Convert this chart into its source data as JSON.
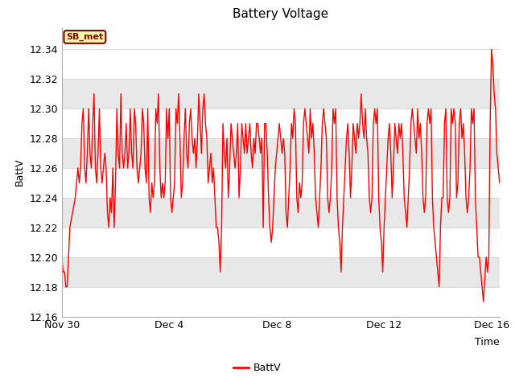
{
  "title": "Battery Voltage",
  "xlabel": "Time",
  "ylabel": "BattV",
  "ylim": [
    12.16,
    12.355
  ],
  "yticks": [
    12.16,
    12.18,
    12.2,
    12.22,
    12.24,
    12.26,
    12.28,
    12.3,
    12.32,
    12.34
  ],
  "legend_label": "BattV",
  "station_label": "SB_met",
  "line_color": "red",
  "bg_color": "#ffffff",
  "band_colors": [
    "#ffffff",
    "#e8e8e8"
  ],
  "xtick_positions": [
    0,
    4,
    8,
    12,
    16
  ],
  "xtick_labels": [
    "Nov 30",
    "Dec 4",
    "Dec 8",
    "Dec 12",
    "Dec 16"
  ],
  "data": [
    [
      0.0,
      12.2
    ],
    [
      0.05,
      12.19
    ],
    [
      0.1,
      12.19
    ],
    [
      0.15,
      12.18
    ],
    [
      0.2,
      12.18
    ],
    [
      0.3,
      12.22
    ],
    [
      0.4,
      12.23
    ],
    [
      0.5,
      12.24
    ],
    [
      0.55,
      12.25
    ],
    [
      0.6,
      12.26
    ],
    [
      0.65,
      12.25
    ],
    [
      0.7,
      12.26
    ],
    [
      0.75,
      12.29
    ],
    [
      0.8,
      12.3
    ],
    [
      0.85,
      12.26
    ],
    [
      0.9,
      12.25
    ],
    [
      0.95,
      12.27
    ],
    [
      1.0,
      12.3
    ],
    [
      1.05,
      12.27
    ],
    [
      1.1,
      12.26
    ],
    [
      1.15,
      12.29
    ],
    [
      1.2,
      12.31
    ],
    [
      1.25,
      12.26
    ],
    [
      1.3,
      12.25
    ],
    [
      1.35,
      12.27
    ],
    [
      1.4,
      12.3
    ],
    [
      1.45,
      12.26
    ],
    [
      1.5,
      12.25
    ],
    [
      1.55,
      12.26
    ],
    [
      1.6,
      12.27
    ],
    [
      1.65,
      12.26
    ],
    [
      1.7,
      12.23
    ],
    [
      1.75,
      12.22
    ],
    [
      1.8,
      12.24
    ],
    [
      1.85,
      12.23
    ],
    [
      1.9,
      12.26
    ],
    [
      1.95,
      12.22
    ],
    [
      2.0,
      12.25
    ],
    [
      2.05,
      12.3
    ],
    [
      2.1,
      12.27
    ],
    [
      2.15,
      12.26
    ],
    [
      2.2,
      12.31
    ],
    [
      2.25,
      12.27
    ],
    [
      2.3,
      12.26
    ],
    [
      2.35,
      12.27
    ],
    [
      2.4,
      12.29
    ],
    [
      2.45,
      12.26
    ],
    [
      2.5,
      12.27
    ],
    [
      2.55,
      12.3
    ],
    [
      2.6,
      12.27
    ],
    [
      2.65,
      12.26
    ],
    [
      2.7,
      12.3
    ],
    [
      2.75,
      12.29
    ],
    [
      2.8,
      12.26
    ],
    [
      2.85,
      12.25
    ],
    [
      2.9,
      12.26
    ],
    [
      2.95,
      12.27
    ],
    [
      3.0,
      12.3
    ],
    [
      3.05,
      12.29
    ],
    [
      3.1,
      12.26
    ],
    [
      3.15,
      12.25
    ],
    [
      3.2,
      12.3
    ],
    [
      3.25,
      12.24
    ],
    [
      3.3,
      12.23
    ],
    [
      3.35,
      12.25
    ],
    [
      3.4,
      12.24
    ],
    [
      3.45,
      12.25
    ],
    [
      3.5,
      12.3
    ],
    [
      3.55,
      12.29
    ],
    [
      3.6,
      12.31
    ],
    [
      3.65,
      12.26
    ],
    [
      3.7,
      12.24
    ],
    [
      3.75,
      12.25
    ],
    [
      3.8,
      12.24
    ],
    [
      3.85,
      12.25
    ],
    [
      3.9,
      12.3
    ],
    [
      3.95,
      12.28
    ],
    [
      4.0,
      12.3
    ],
    [
      4.05,
      12.24
    ],
    [
      4.1,
      12.23
    ],
    [
      4.15,
      12.24
    ],
    [
      4.2,
      12.25
    ],
    [
      4.25,
      12.3
    ],
    [
      4.3,
      12.29
    ],
    [
      4.35,
      12.31
    ],
    [
      4.4,
      12.28
    ],
    [
      4.45,
      12.24
    ],
    [
      4.5,
      12.25
    ],
    [
      4.55,
      12.28
    ],
    [
      4.6,
      12.3
    ],
    [
      4.65,
      12.27
    ],
    [
      4.7,
      12.26
    ],
    [
      4.75,
      12.29
    ],
    [
      4.8,
      12.3
    ],
    [
      4.85,
      12.28
    ],
    [
      4.9,
      12.27
    ],
    [
      4.95,
      12.28
    ],
    [
      5.0,
      12.26
    ],
    [
      5.05,
      12.28
    ],
    [
      5.1,
      12.31
    ],
    [
      5.15,
      12.29
    ],
    [
      5.2,
      12.27
    ],
    [
      5.25,
      12.3
    ],
    [
      5.3,
      12.31
    ],
    [
      5.35,
      12.29
    ],
    [
      5.4,
      12.28
    ],
    [
      5.45,
      12.25
    ],
    [
      5.5,
      12.26
    ],
    [
      5.55,
      12.27
    ],
    [
      5.6,
      12.25
    ],
    [
      5.65,
      12.26
    ],
    [
      5.7,
      12.24
    ],
    [
      5.75,
      12.22
    ],
    [
      5.8,
      12.22
    ],
    [
      5.85,
      12.21
    ],
    [
      5.9,
      12.19
    ],
    [
      5.95,
      12.22
    ],
    [
      6.0,
      12.29
    ],
    [
      6.05,
      12.27
    ],
    [
      6.1,
      12.26
    ],
    [
      6.15,
      12.28
    ],
    [
      6.2,
      12.24
    ],
    [
      6.25,
      12.26
    ],
    [
      6.3,
      12.29
    ],
    [
      6.35,
      12.28
    ],
    [
      6.4,
      12.27
    ],
    [
      6.45,
      12.26
    ],
    [
      6.5,
      12.27
    ],
    [
      6.55,
      12.29
    ],
    [
      6.6,
      12.24
    ],
    [
      6.65,
      12.26
    ],
    [
      6.7,
      12.29
    ],
    [
      6.75,
      12.28
    ],
    [
      6.8,
      12.27
    ],
    [
      6.85,
      12.29
    ],
    [
      6.9,
      12.27
    ],
    [
      6.95,
      12.28
    ],
    [
      7.0,
      12.29
    ],
    [
      7.05,
      12.27
    ],
    [
      7.1,
      12.26
    ],
    [
      7.15,
      12.28
    ],
    [
      7.2,
      12.27
    ],
    [
      7.25,
      12.29
    ],
    [
      7.3,
      12.29
    ],
    [
      7.35,
      12.28
    ],
    [
      7.4,
      12.27
    ],
    [
      7.45,
      12.28
    ],
    [
      7.5,
      12.22
    ],
    [
      7.55,
      12.29
    ],
    [
      7.6,
      12.29
    ],
    [
      7.65,
      12.27
    ],
    [
      7.7,
      12.24
    ],
    [
      7.75,
      12.22
    ],
    [
      7.8,
      12.21
    ],
    [
      7.85,
      12.22
    ],
    [
      7.9,
      12.24
    ],
    [
      7.95,
      12.26
    ],
    [
      8.0,
      12.27
    ],
    [
      8.05,
      12.28
    ],
    [
      8.1,
      12.29
    ],
    [
      8.15,
      12.28
    ],
    [
      8.2,
      12.27
    ],
    [
      8.25,
      12.28
    ],
    [
      8.3,
      12.27
    ],
    [
      8.35,
      12.23
    ],
    [
      8.4,
      12.22
    ],
    [
      8.45,
      12.24
    ],
    [
      8.5,
      12.26
    ],
    [
      8.55,
      12.29
    ],
    [
      8.6,
      12.28
    ],
    [
      8.65,
      12.3
    ],
    [
      8.7,
      12.29
    ],
    [
      8.75,
      12.24
    ],
    [
      8.8,
      12.23
    ],
    [
      8.85,
      12.25
    ],
    [
      8.9,
      12.24
    ],
    [
      8.95,
      12.25
    ],
    [
      9.0,
      12.29
    ],
    [
      9.05,
      12.3
    ],
    [
      9.1,
      12.29
    ],
    [
      9.15,
      12.28
    ],
    [
      9.2,
      12.27
    ],
    [
      9.25,
      12.3
    ],
    [
      9.3,
      12.28
    ],
    [
      9.35,
      12.29
    ],
    [
      9.4,
      12.27
    ],
    [
      9.45,
      12.24
    ],
    [
      9.5,
      12.23
    ],
    [
      9.55,
      12.22
    ],
    [
      9.6,
      12.24
    ],
    [
      9.65,
      12.26
    ],
    [
      9.7,
      12.29
    ],
    [
      9.75,
      12.3
    ],
    [
      9.8,
      12.29
    ],
    [
      9.85,
      12.28
    ],
    [
      9.9,
      12.24
    ],
    [
      9.95,
      12.23
    ],
    [
      10.0,
      12.24
    ],
    [
      10.05,
      12.26
    ],
    [
      10.1,
      12.3
    ],
    [
      10.15,
      12.29
    ],
    [
      10.2,
      12.3
    ],
    [
      10.25,
      12.24
    ],
    [
      10.3,
      12.22
    ],
    [
      10.35,
      12.21
    ],
    [
      10.4,
      12.19
    ],
    [
      10.45,
      12.22
    ],
    [
      10.5,
      12.24
    ],
    [
      10.55,
      12.26
    ],
    [
      10.6,
      12.28
    ],
    [
      10.65,
      12.29
    ],
    [
      10.7,
      12.27
    ],
    [
      10.75,
      12.24
    ],
    [
      10.8,
      12.26
    ],
    [
      10.85,
      12.29
    ],
    [
      10.9,
      12.28
    ],
    [
      10.95,
      12.27
    ],
    [
      11.0,
      12.29
    ],
    [
      11.05,
      12.28
    ],
    [
      11.1,
      12.29
    ],
    [
      11.15,
      12.31
    ],
    [
      11.2,
      12.29
    ],
    [
      11.25,
      12.28
    ],
    [
      11.3,
      12.3
    ],
    [
      11.35,
      12.28
    ],
    [
      11.4,
      12.27
    ],
    [
      11.45,
      12.24
    ],
    [
      11.5,
      12.23
    ],
    [
      11.55,
      12.24
    ],
    [
      11.6,
      12.29
    ],
    [
      11.65,
      12.3
    ],
    [
      11.7,
      12.29
    ],
    [
      11.75,
      12.3
    ],
    [
      11.8,
      12.24
    ],
    [
      11.85,
      12.22
    ],
    [
      11.9,
      12.21
    ],
    [
      11.95,
      12.19
    ],
    [
      12.0,
      12.22
    ],
    [
      12.05,
      12.24
    ],
    [
      12.1,
      12.26
    ],
    [
      12.15,
      12.28
    ],
    [
      12.2,
      12.29
    ],
    [
      12.25,
      12.27
    ],
    [
      12.3,
      12.24
    ],
    [
      12.35,
      12.26
    ],
    [
      12.4,
      12.29
    ],
    [
      12.45,
      12.28
    ],
    [
      12.5,
      12.27
    ],
    [
      12.55,
      12.29
    ],
    [
      12.6,
      12.28
    ],
    [
      12.65,
      12.29
    ],
    [
      12.7,
      12.27
    ],
    [
      12.75,
      12.24
    ],
    [
      12.8,
      12.23
    ],
    [
      12.85,
      12.22
    ],
    [
      12.9,
      12.24
    ],
    [
      12.95,
      12.26
    ],
    [
      13.0,
      12.29
    ],
    [
      13.05,
      12.3
    ],
    [
      13.1,
      12.29
    ],
    [
      13.15,
      12.28
    ],
    [
      13.2,
      12.27
    ],
    [
      13.25,
      12.3
    ],
    [
      13.3,
      12.28
    ],
    [
      13.35,
      12.29
    ],
    [
      13.4,
      12.27
    ],
    [
      13.45,
      12.24
    ],
    [
      13.5,
      12.23
    ],
    [
      13.55,
      12.24
    ],
    [
      13.6,
      12.29
    ],
    [
      13.65,
      12.3
    ],
    [
      13.7,
      12.29
    ],
    [
      13.75,
      12.3
    ],
    [
      13.8,
      12.24
    ],
    [
      13.85,
      12.22
    ],
    [
      13.9,
      12.21
    ],
    [
      13.95,
      12.2
    ],
    [
      14.0,
      12.19
    ],
    [
      14.05,
      12.18
    ],
    [
      14.1,
      12.22
    ],
    [
      14.15,
      12.24
    ],
    [
      14.2,
      12.24
    ],
    [
      14.25,
      12.29
    ],
    [
      14.3,
      12.3
    ],
    [
      14.35,
      12.24
    ],
    [
      14.4,
      12.23
    ],
    [
      14.45,
      12.24
    ],
    [
      14.5,
      12.3
    ],
    [
      14.55,
      12.29
    ],
    [
      14.6,
      12.3
    ],
    [
      14.65,
      12.29
    ],
    [
      14.7,
      12.24
    ],
    [
      14.75,
      12.25
    ],
    [
      14.8,
      12.29
    ],
    [
      14.85,
      12.3
    ],
    [
      14.9,
      12.28
    ],
    [
      14.95,
      12.29
    ],
    [
      15.0,
      12.27
    ],
    [
      15.05,
      12.24
    ],
    [
      15.1,
      12.23
    ],
    [
      15.15,
      12.24
    ],
    [
      15.2,
      12.26
    ],
    [
      15.25,
      12.3
    ],
    [
      15.3,
      12.29
    ],
    [
      15.35,
      12.3
    ],
    [
      15.4,
      12.24
    ],
    [
      15.45,
      12.22
    ],
    [
      15.5,
      12.2
    ],
    [
      15.55,
      12.2
    ],
    [
      15.6,
      12.19
    ],
    [
      15.65,
      12.18
    ],
    [
      15.7,
      12.17
    ],
    [
      15.8,
      12.2
    ],
    [
      15.85,
      12.19
    ],
    [
      15.9,
      12.2
    ],
    [
      15.95,
      12.29
    ],
    [
      16.0,
      12.34
    ],
    [
      16.05,
      12.33
    ],
    [
      16.1,
      12.31
    ],
    [
      16.15,
      12.3
    ],
    [
      16.2,
      12.27
    ],
    [
      16.25,
      12.26
    ],
    [
      16.3,
      12.25
    ]
  ]
}
